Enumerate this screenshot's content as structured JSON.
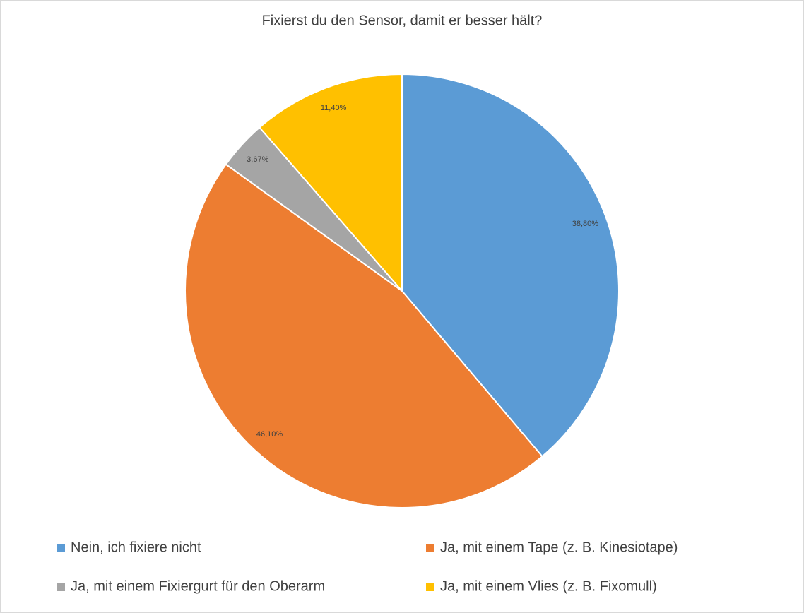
{
  "chart_data": {
    "type": "pie",
    "title": "Fixierst du den Sensor, damit er besser hält?",
    "categories": [
      "Nein, ich fixiere nicht",
      "Ja, mit einem Tape (z. B. Kinesiotape)",
      "Ja, mit einem Fixiergurt für den Oberarm",
      "Ja, mit einem Vlies (z. B. Fixomull)"
    ],
    "values": [
      38.8,
      46.1,
      3.67,
      11.4
    ],
    "value_labels": [
      "38,80%",
      "46,10%",
      "3,67%",
      "11,40%"
    ],
    "colors": [
      "#5b9bd5",
      "#ed7d31",
      "#a5a5a5",
      "#ffc000"
    ],
    "legend": "bottom"
  }
}
